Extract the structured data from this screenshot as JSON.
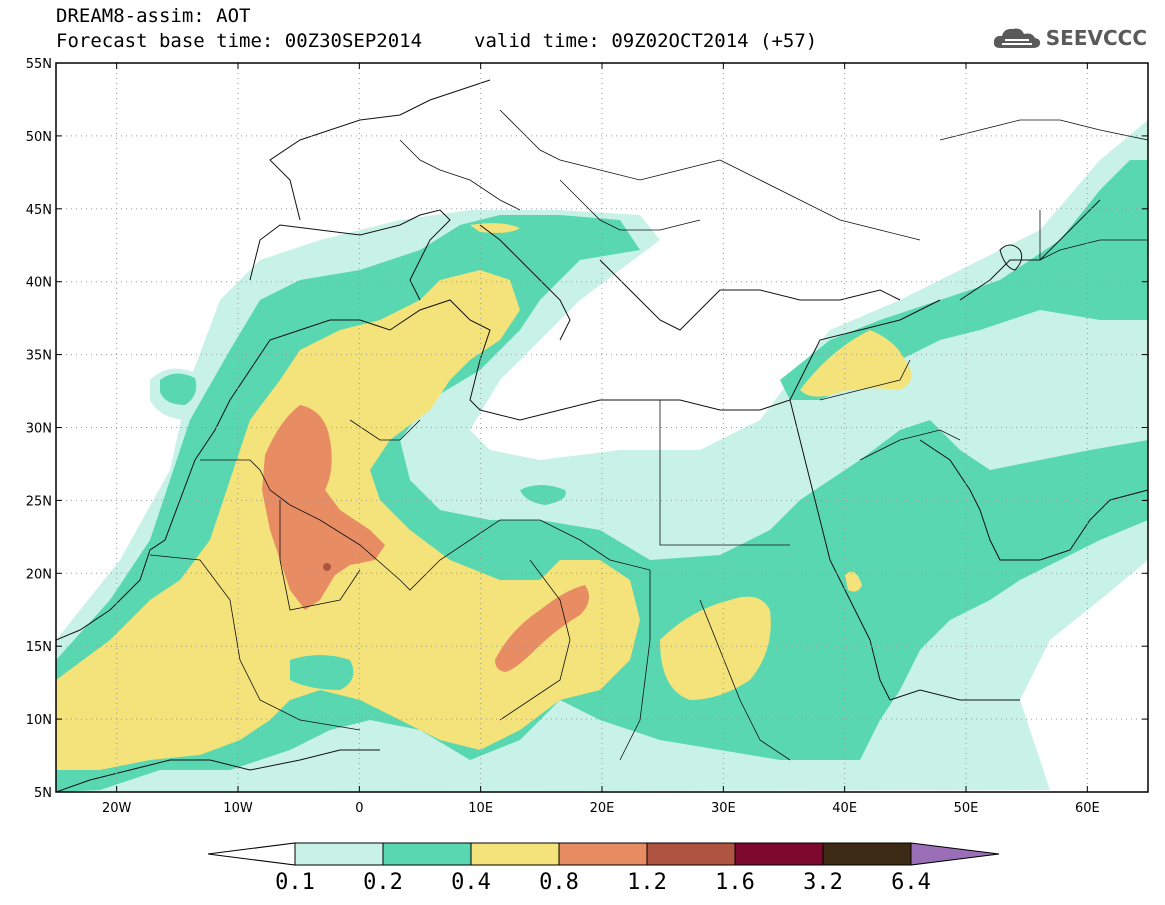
{
  "header": {
    "title_line1": "DREAM8-assim: AOT",
    "forecast_label": "Forecast base time: 00Z30SEP2014",
    "valid_label": "valid time: 09Z02OCT2014 (+57)",
    "logo_text": "SEEVCCC",
    "logo_icon": "cloud-icon"
  },
  "map": {
    "projection": "lat-lon",
    "lon_range": [
      -25,
      65
    ],
    "lat_range": [
      5,
      55
    ],
    "lat_ticks": [
      "55N",
      "50N",
      "45N",
      "40N",
      "35N",
      "30N",
      "25N",
      "20N",
      "15N",
      "10N",
      "5N"
    ],
    "lon_ticks": [
      "20W",
      "10W",
      "0",
      "10E",
      "20E",
      "30E",
      "40E",
      "50E",
      "60E"
    ],
    "gridlines": "dotted"
  },
  "colorbar": {
    "labels": [
      "0.1",
      "0.2",
      "0.4",
      "0.8",
      "1.2",
      "1.6",
      "3.2",
      "6.4"
    ],
    "colors": [
      "#c8f2e8",
      "#58d7b0",
      "#f4e27a",
      "#e88c64",
      "#b05442",
      "#7d0a2e",
      "#3c2a14",
      "#9a6fb8"
    ],
    "under_color": "#ffffff"
  }
}
